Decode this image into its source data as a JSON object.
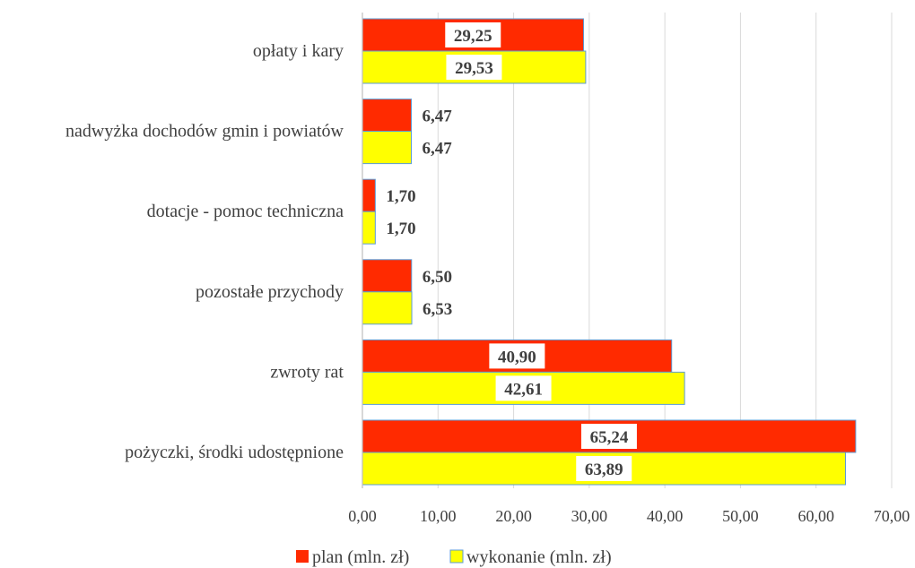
{
  "chart_data": {
    "type": "bar",
    "orientation": "horizontal",
    "categories": [
      "opłaty i kary",
      "nadwyżka dochodów gmin i powiatów",
      "dotacje - pomoc techniczna",
      "pozostałe przychody",
      "zwroty rat",
      "pożyczki, środki udostępnione"
    ],
    "series": [
      {
        "name": "plan (mln. zł)",
        "color": "#ff2a00",
        "values": [
          29.25,
          6.47,
          1.7,
          6.5,
          40.9,
          65.24
        ],
        "labels": [
          "29,25",
          "6,47",
          "1,70",
          "6,50",
          "40,90",
          "65,24"
        ]
      },
      {
        "name": "wykonanie (mln. zł)",
        "color": "#ffff00",
        "values": [
          29.53,
          6.47,
          1.7,
          6.53,
          42.61,
          63.89
        ],
        "labels": [
          "29,53",
          "6,47",
          "1,70",
          "6,53",
          "42,61",
          "63,89"
        ]
      }
    ],
    "xlim": [
      0,
      70
    ],
    "x_ticks": [
      "0,00",
      "10,00",
      "20,00",
      "30,00",
      "40,00",
      "50,00",
      "60,00",
      "70,00"
    ],
    "grid": true,
    "legend_position": "bottom"
  }
}
